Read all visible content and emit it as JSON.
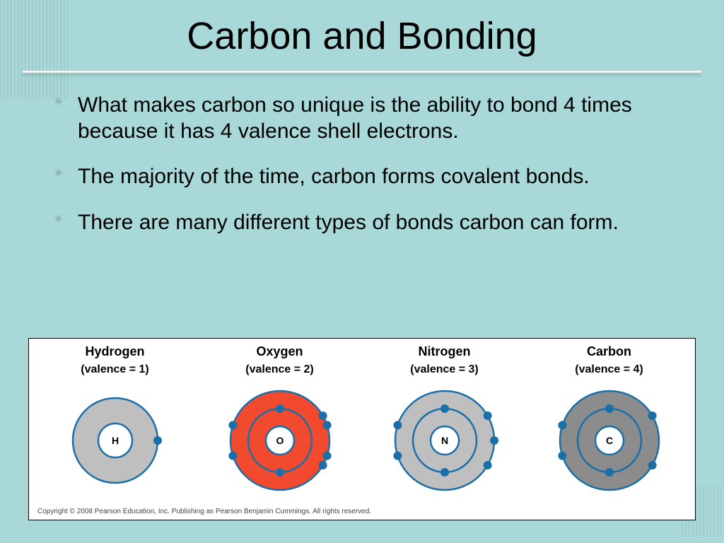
{
  "slide": {
    "title": "Carbon and Bonding",
    "background_color": "#a8d8d8",
    "bullets": [
      "What makes carbon so unique is the ability to bond 4 times because it has 4 valence shell electrons.",
      "The majority of the time, carbon forms covalent bonds.",
      "There are many different types of bonds carbon can form."
    ]
  },
  "figure": {
    "type": "infographic",
    "background_color": "#ffffff",
    "border_color": "#000000",
    "label_fontsize": 18,
    "valence_fontsize": 16,
    "symbol_fontsize": 14,
    "electron_color": "#1b6fa8",
    "electron_radius": 6,
    "shell_stroke": "#1b6fa8",
    "shell_stroke_width": 2.5,
    "atoms": [
      {
        "name": "Hydrogen",
        "valence_label": "(valence = 1)",
        "symbol": "H",
        "shells": [
          1
        ],
        "fill_colors": [
          "#bfbfbf"
        ],
        "nucleus_fill": "#ffffff",
        "shell_radii": [
          60
        ],
        "nucleus_radius": 24,
        "electrons": [
          {
            "shell": 0,
            "angle": 90
          }
        ]
      },
      {
        "name": "Oxygen",
        "valence_label": "(valence = 2)",
        "symbol": "O",
        "shells": [
          2,
          6
        ],
        "fill_colors": [
          "#f24a2e",
          "#f24a2e"
        ],
        "nucleus_fill": "#ffffff",
        "shell_radii": [
          70,
          45
        ],
        "nucleus_radius": 20,
        "electrons": [
          {
            "shell": 1,
            "angle": 0
          },
          {
            "shell": 1,
            "angle": 180
          },
          {
            "shell": 0,
            "angle": 72
          },
          {
            "shell": 0,
            "angle": 108
          },
          {
            "shell": 0,
            "angle": 60
          },
          {
            "shell": 0,
            "angle": 120
          },
          {
            "shell": 0,
            "angle": 252
          },
          {
            "shell": 0,
            "angle": 288
          }
        ]
      },
      {
        "name": "Nitrogen",
        "valence_label": "(valence = 3)",
        "symbol": "N",
        "shells": [
          2,
          5
        ],
        "fill_colors": [
          "#bfbfbf",
          "#bfbfbf"
        ],
        "nucleus_fill": "#ffffff",
        "shell_radii": [
          70,
          45
        ],
        "nucleus_radius": 20,
        "electrons": [
          {
            "shell": 1,
            "angle": 0
          },
          {
            "shell": 1,
            "angle": 180
          },
          {
            "shell": 0,
            "angle": 60
          },
          {
            "shell": 0,
            "angle": 90
          },
          {
            "shell": 0,
            "angle": 120
          },
          {
            "shell": 0,
            "angle": 252
          },
          {
            "shell": 0,
            "angle": 288
          }
        ]
      },
      {
        "name": "Carbon",
        "valence_label": "(valence = 4)",
        "symbol": "C",
        "shells": [
          2,
          4
        ],
        "fill_colors": [
          "#8c8c8c",
          "#8c8c8c"
        ],
        "nucleus_fill": "#ffffff",
        "shell_radii": [
          70,
          45
        ],
        "nucleus_radius": 20,
        "electrons": [
          {
            "shell": 1,
            "angle": 0
          },
          {
            "shell": 1,
            "angle": 180
          },
          {
            "shell": 0,
            "angle": 60
          },
          {
            "shell": 0,
            "angle": 120
          },
          {
            "shell": 0,
            "angle": 252
          },
          {
            "shell": 0,
            "angle": 288
          }
        ]
      }
    ],
    "copyright": "Copyright © 2008 Pearson Education, Inc. Publishing as Pearson Benjamin Cummings. All rights reserved."
  }
}
